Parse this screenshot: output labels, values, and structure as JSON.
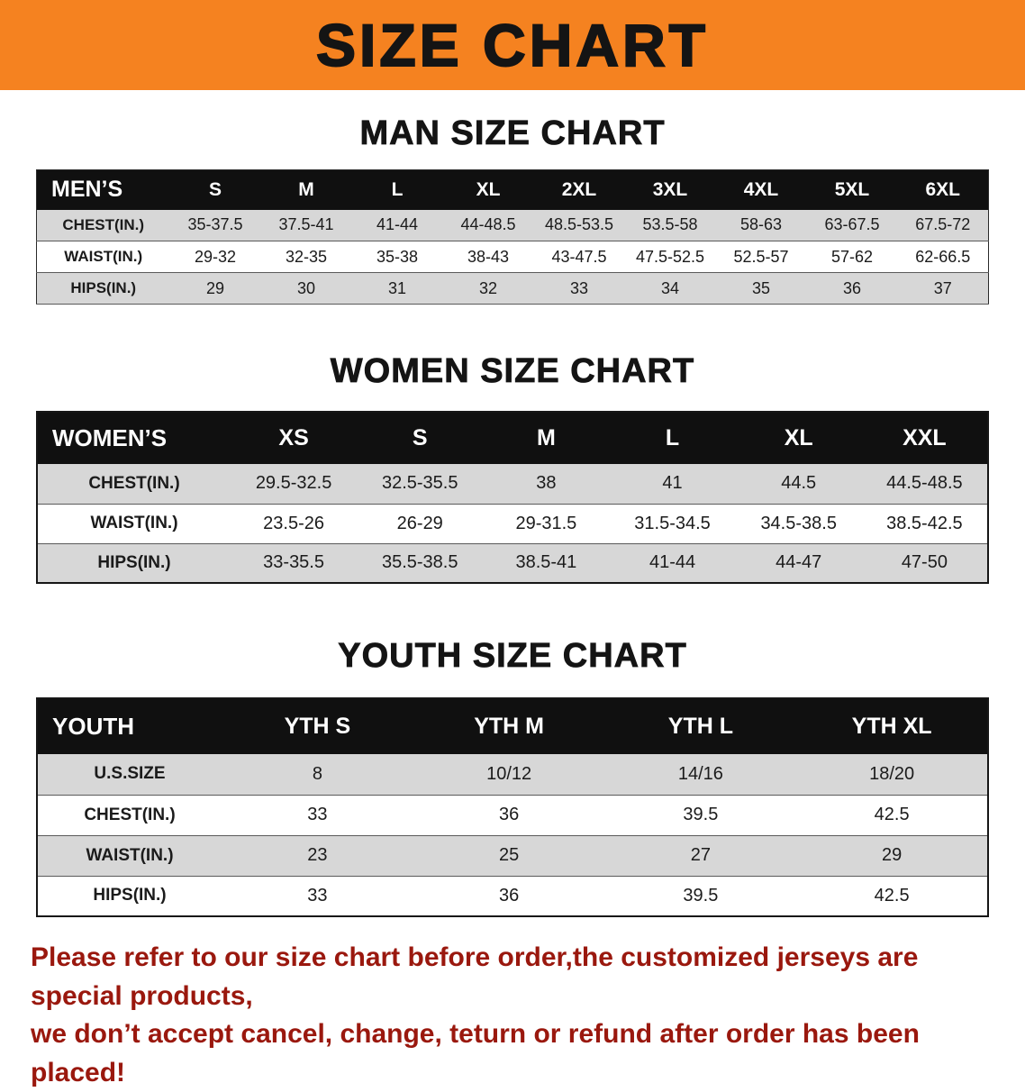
{
  "banner": {
    "title": "SIZE CHART"
  },
  "colors": {
    "banner-bg": "#f58220",
    "header-bg": "#101010",
    "row-gray": "#d7d7d7",
    "footer-red": "#9a180e"
  },
  "sections": [
    {
      "heading": "MAN SIZE CHART",
      "table": {
        "header": [
          "MEN’S",
          "S",
          "M",
          "L",
          "XL",
          "2XL",
          "3XL",
          "4XL",
          "5XL",
          "6XL"
        ],
        "rows": [
          [
            "CHEST(IN.)",
            "35-37.5",
            "37.5-41",
            "41-44",
            "44-48.5",
            "48.5-53.5",
            "53.5-58",
            "58-63",
            "63-67.5",
            "67.5-72"
          ],
          [
            "WAIST(IN.)",
            "29-32",
            "32-35",
            "35-38",
            "38-43",
            "43-47.5",
            "47.5-52.5",
            "52.5-57",
            "57-62",
            "62-66.5"
          ],
          [
            "HIPS(IN.)",
            "29",
            "30",
            "31",
            "32",
            "33",
            "34",
            "35",
            "36",
            "37"
          ]
        ]
      }
    },
    {
      "heading": "WOMEN SIZE CHART",
      "table": {
        "header": [
          "WOMEN’S",
          "XS",
          "S",
          "M",
          "L",
          "XL",
          "XXL"
        ],
        "rows": [
          [
            "CHEST(IN.)",
            "29.5-32.5",
            "32.5-35.5",
            "38",
            "41",
            "44.5",
            "44.5-48.5"
          ],
          [
            "WAIST(IN.)",
            "23.5-26",
            "26-29",
            "29-31.5",
            "31.5-34.5",
            "34.5-38.5",
            "38.5-42.5"
          ],
          [
            "HIPS(IN.)",
            "33-35.5",
            "35.5-38.5",
            "38.5-41",
            "41-44",
            "44-47",
            "47-50"
          ]
        ]
      }
    },
    {
      "heading": "YOUTH SIZE CHART",
      "table": {
        "header": [
          "YOUTH",
          "YTH S",
          "YTH M",
          "YTH L",
          "YTH XL"
        ],
        "rows": [
          [
            "U.S.SIZE",
            "8",
            "10/12",
            "14/16",
            "18/20"
          ],
          [
            "CHEST(IN.)",
            "33",
            "36",
            "39.5",
            "42.5"
          ],
          [
            "WAIST(IN.)",
            "23",
            "25",
            "27",
            "29"
          ],
          [
            "HIPS(IN.)",
            "33",
            "36",
            "39.5",
            "42.5"
          ]
        ]
      }
    }
  ],
  "footer": {
    "line1": "Please refer to our size chart before order,the customized jerseys are special products,",
    "line2": "we don’t accept cancel, change, teturn or refund after order has been placed!"
  }
}
